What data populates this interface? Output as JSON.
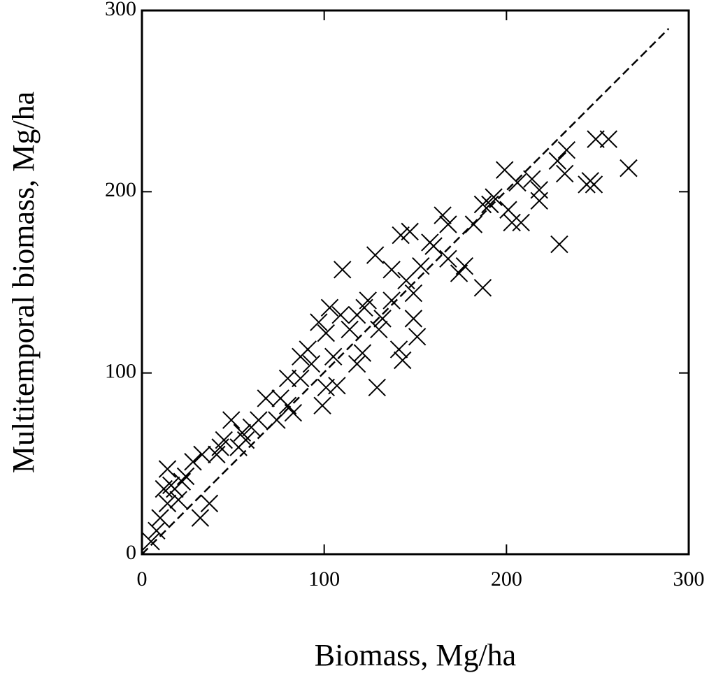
{
  "chart_data": {
    "type": "scatter",
    "xlabel": "Biomass, Mg/ha",
    "ylabel": "Multitemporal biomass, Mg/ha",
    "xlim": [
      0,
      300
    ],
    "ylim": [
      0,
      300
    ],
    "xticks": [
      0,
      100,
      200,
      300
    ],
    "yticks": [
      0,
      100,
      200,
      300
    ],
    "grid": false,
    "series": [
      {
        "marker": "x",
        "color": "#000000",
        "x": [
          267,
          256,
          249,
          246,
          248,
          244,
          233,
          232,
          229,
          228,
          218,
          214,
          208,
          203,
          199,
          206,
          193,
          187,
          187,
          182,
          177,
          174,
          168,
          165,
          160,
          153,
          147,
          142,
          145,
          137,
          128,
          110,
          151,
          149,
          141,
          143,
          130,
          129,
          121,
          118,
          114,
          109,
          103,
          105,
          107,
          99,
          101,
          97,
          91,
          93,
          87,
          83,
          80,
          76,
          74,
          68,
          64,
          60,
          55,
          49,
          45,
          41,
          33,
          28,
          37,
          32,
          22,
          18,
          14,
          10,
          8,
          14,
          16,
          24,
          5,
          137,
          124,
          118,
          149,
          122,
          168,
          201,
          218,
          191,
          158,
          132,
          101,
          87,
          80,
          57,
          53,
          43,
          12,
          20
        ],
        "y": [
          213,
          229,
          229,
          206,
          204,
          204,
          223,
          210,
          171,
          217,
          195,
          207,
          183,
          183,
          212,
          205,
          197,
          147,
          193,
          182,
          159,
          155,
          163,
          187,
          170,
          159,
          178,
          176,
          151,
          157,
          165,
          157,
          120,
          130,
          113,
          107,
          124,
          92,
          111,
          105,
          124,
          132,
          136,
          109,
          93,
          82,
          92,
          128,
          113,
          105,
          97,
          78,
          97,
          86,
          74,
          86,
          74,
          70,
          67,
          74,
          63,
          55,
          55,
          51,
          28,
          20,
          40,
          36,
          28,
          20,
          13,
          47,
          38,
          43,
          7,
          140,
          140,
          132,
          144,
          136,
          182,
          190,
          201,
          193,
          172,
          130,
          122,
          109,
          82,
          63,
          59,
          59,
          36,
          30
        ]
      },
      {
        "marker": "dashed-line",
        "color": "#000000",
        "x": [
          0,
          289
        ],
        "y": [
          0,
          290
        ]
      }
    ]
  }
}
